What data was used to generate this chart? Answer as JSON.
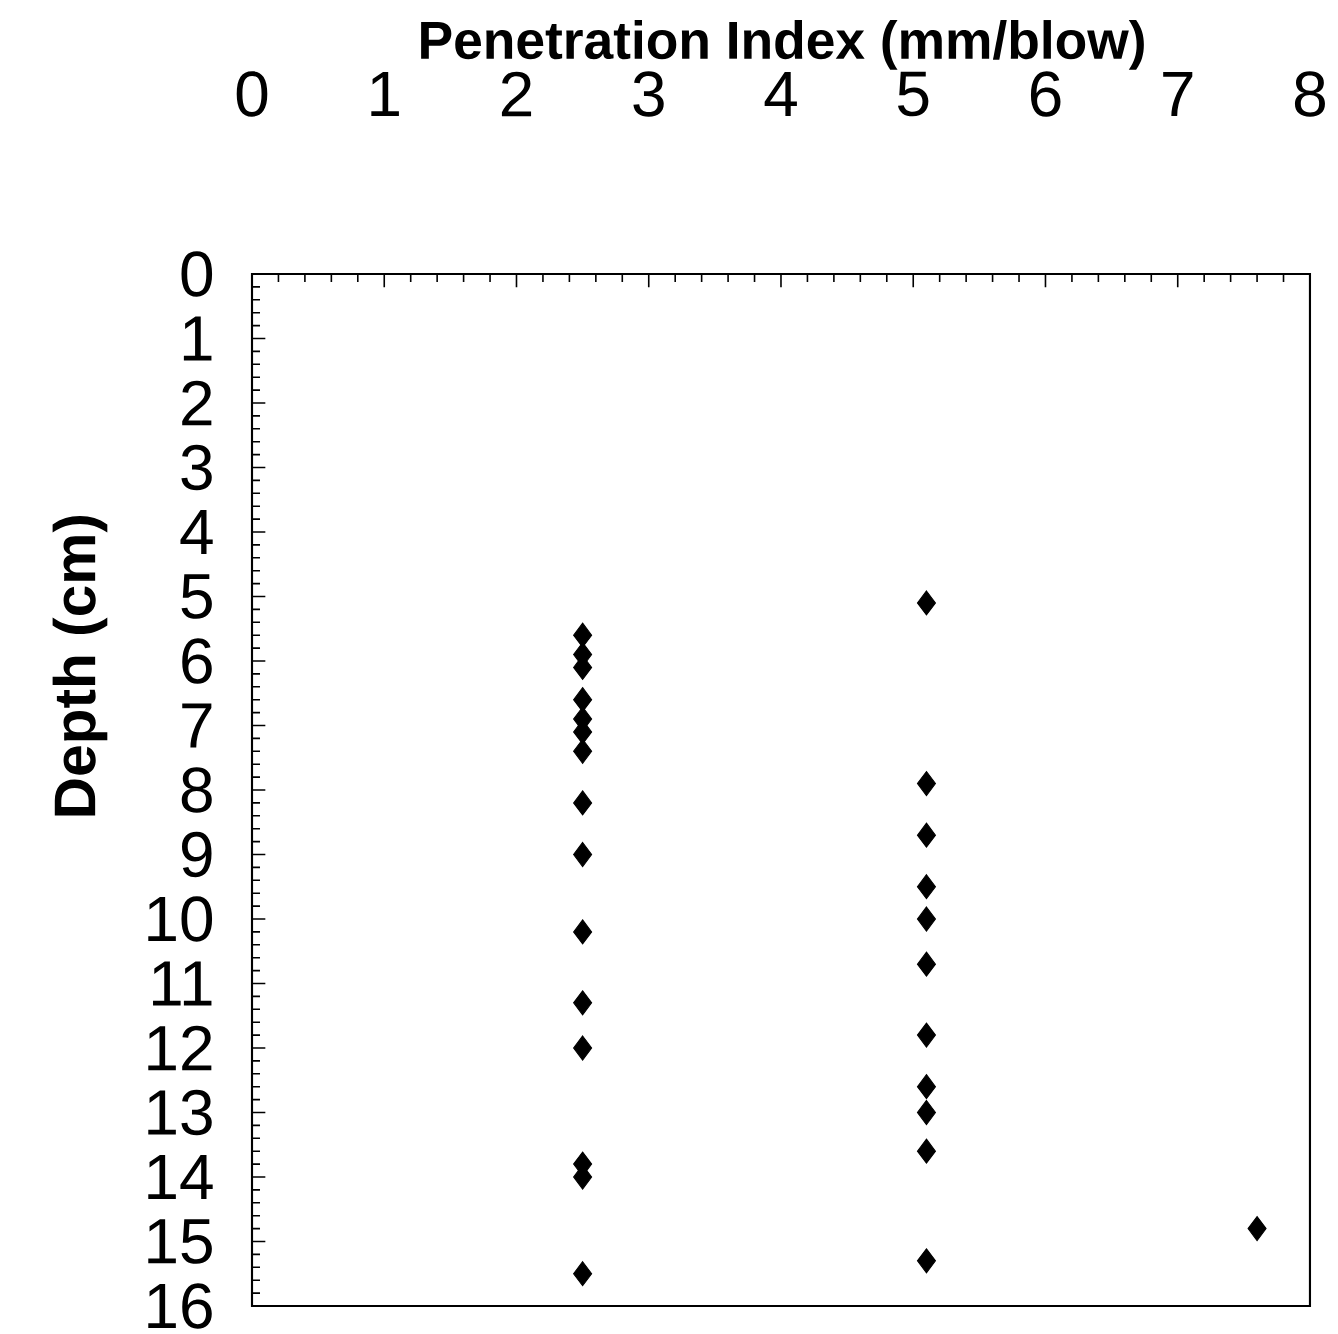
{
  "chart_data": {
    "type": "scatter",
    "xlabel": "Penetration Index (mm/blow)",
    "ylabel": "Depth (cm)",
    "xlim": [
      0,
      8
    ],
    "ylim": [
      16,
      0
    ],
    "xticks": [
      0,
      1,
      2,
      3,
      4,
      5,
      6,
      7,
      8
    ],
    "yticks": [
      0,
      1,
      2,
      3,
      4,
      5,
      6,
      7,
      8,
      9,
      10,
      11,
      12,
      13,
      14,
      15,
      16
    ],
    "marker": "diamond",
    "series": [
      {
        "color": "#000000",
        "x": [
          2.5,
          2.5,
          2.5,
          2.5,
          2.5,
          2.5,
          2.5,
          2.5,
          2.5,
          2.5,
          2.5,
          2.5,
          2.5,
          2.5,
          2.5,
          5.1,
          5.1,
          5.1,
          5.1,
          5.1,
          5.1,
          5.1,
          5.1,
          5.1,
          5.1,
          5.1,
          7.6
        ],
        "values": [
          5.6,
          5.9,
          6.1,
          6.6,
          6.9,
          7.1,
          7.4,
          8.2,
          9.0,
          10.2,
          11.3,
          12.0,
          13.8,
          14.0,
          15.5,
          5.1,
          7.9,
          8.7,
          9.5,
          10.0,
          10.7,
          11.8,
          12.6,
          13.0,
          13.6,
          15.3,
          14.8
        ]
      }
    ]
  }
}
